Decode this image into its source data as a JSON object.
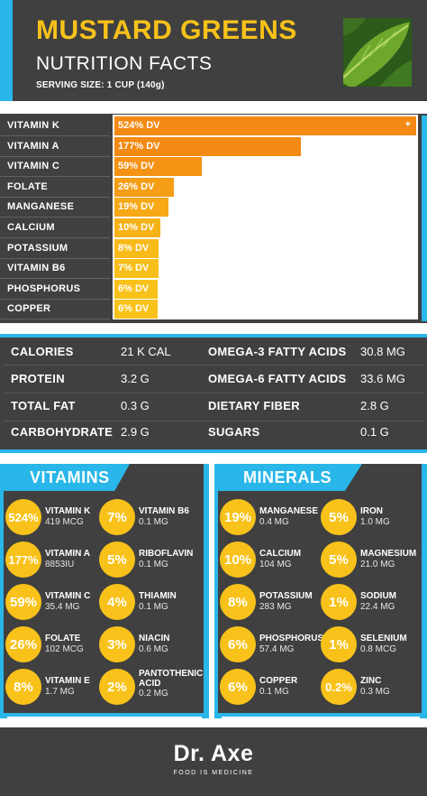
{
  "header": {
    "title": "MUSTARD GREENS",
    "subtitle": "NUTRITION FACTS",
    "serving": "SERVING SIZE: 1 CUP (140g)"
  },
  "chart_data": {
    "type": "bar",
    "categories": [
      "VITAMIN K",
      "VITAMIN A",
      "VITAMIN C",
      "FOLATE",
      "MANGANESE",
      "CALCIUM",
      "POTASSIUM",
      "VITAMIN B6",
      "PHOSPHORUS",
      "COPPER"
    ],
    "values": [
      524,
      177,
      59,
      26,
      19,
      10,
      8,
      7,
      6,
      6
    ],
    "labels": [
      "524% DV",
      "177% DV",
      "59% DV",
      "26% DV",
      "19% DV",
      "10% DV",
      "8% DV",
      "7% DV",
      "6% DV",
      "6% DV"
    ],
    "overflow_marker": "+",
    "colors": [
      "#f38a13",
      "#f38a13",
      "#f49214",
      "#f59d15",
      "#f6a816",
      "#f7b218",
      "#f8ba19",
      "#f8bf1a",
      "#f8c21a",
      "#f8c21a"
    ]
  },
  "stats": {
    "left": [
      {
        "key": "CALORIES",
        "value": "21 K CAL"
      },
      {
        "key": "PROTEIN",
        "value": "3.2 G"
      },
      {
        "key": "TOTAL FAT",
        "value": "0.3 G"
      },
      {
        "key": "CARBOHYDRATE",
        "value": "2.9 G"
      }
    ],
    "right": [
      {
        "key": "OMEGA-3 FATTY ACIDS",
        "value": "30.8 MG"
      },
      {
        "key": "OMEGA-6 FATTY ACIDS",
        "value": "33.6 MG"
      },
      {
        "key": "DIETARY FIBER",
        "value": "2.8 G"
      },
      {
        "key": "SUGARS",
        "value": "0.1 G"
      }
    ]
  },
  "vitamins": {
    "title": "VITAMINS",
    "items": [
      {
        "pct": "524%",
        "name": "VITAMIN K",
        "amount": "419 MCG"
      },
      {
        "pct": "7%",
        "name": "VITAMIN B6",
        "amount": "0.1 MG"
      },
      {
        "pct": "177%",
        "name": "VITAMIN A",
        "amount": "8853IU"
      },
      {
        "pct": "5%",
        "name": "RIBOFLAVIN",
        "amount": "0.1 MG"
      },
      {
        "pct": "59%",
        "name": "VITAMIN C",
        "amount": "35.4 MG"
      },
      {
        "pct": "4%",
        "name": "THIAMIN",
        "amount": "0.1 MG"
      },
      {
        "pct": "26%",
        "name": "FOLATE",
        "amount": "102 MCG"
      },
      {
        "pct": "3%",
        "name": "NIACIN",
        "amount": "0.6 MG"
      },
      {
        "pct": "8%",
        "name": "VITAMIN E",
        "amount": "1.7 MG"
      },
      {
        "pct": "2%",
        "name": "PANTOTHENIC ACID",
        "name_line1": "PANTOTHENIC",
        "name_line2": "ACID",
        "amount": "0.2 MG"
      }
    ]
  },
  "minerals": {
    "title": "MINERALS",
    "items": [
      {
        "pct": "19%",
        "name": "MANGANESE",
        "amount": "0.4 MG"
      },
      {
        "pct": "5%",
        "name": "IRON",
        "amount": "1.0 MG"
      },
      {
        "pct": "10%",
        "name": "CALCIUM",
        "amount": "104 MG"
      },
      {
        "pct": "5%",
        "name": "MAGNESIUM",
        "amount": "21.0 MG"
      },
      {
        "pct": "8%",
        "name": "POTASSIUM",
        "amount": "283 MG"
      },
      {
        "pct": "1%",
        "name": "SODIUM",
        "amount": "22.4 MG"
      },
      {
        "pct": "6%",
        "name": "PHOSPHORUS",
        "amount": "57.4 MG"
      },
      {
        "pct": "1%",
        "name": "SELENIUM",
        "amount": "0.8 MCG"
      },
      {
        "pct": "6%",
        "name": "COPPER",
        "amount": "0.1 MG"
      },
      {
        "pct": "0.2%",
        "name": "ZINC",
        "amount": "0.3 MG"
      }
    ]
  },
  "footer": {
    "brand": "Dr. Axe",
    "tagline": "FOOD IS MEDICINE"
  },
  "colors": {
    "dark": "#404040",
    "cyan": "#29b6e8",
    "yellow": "#f8c21a",
    "orange": "#f38a13"
  }
}
